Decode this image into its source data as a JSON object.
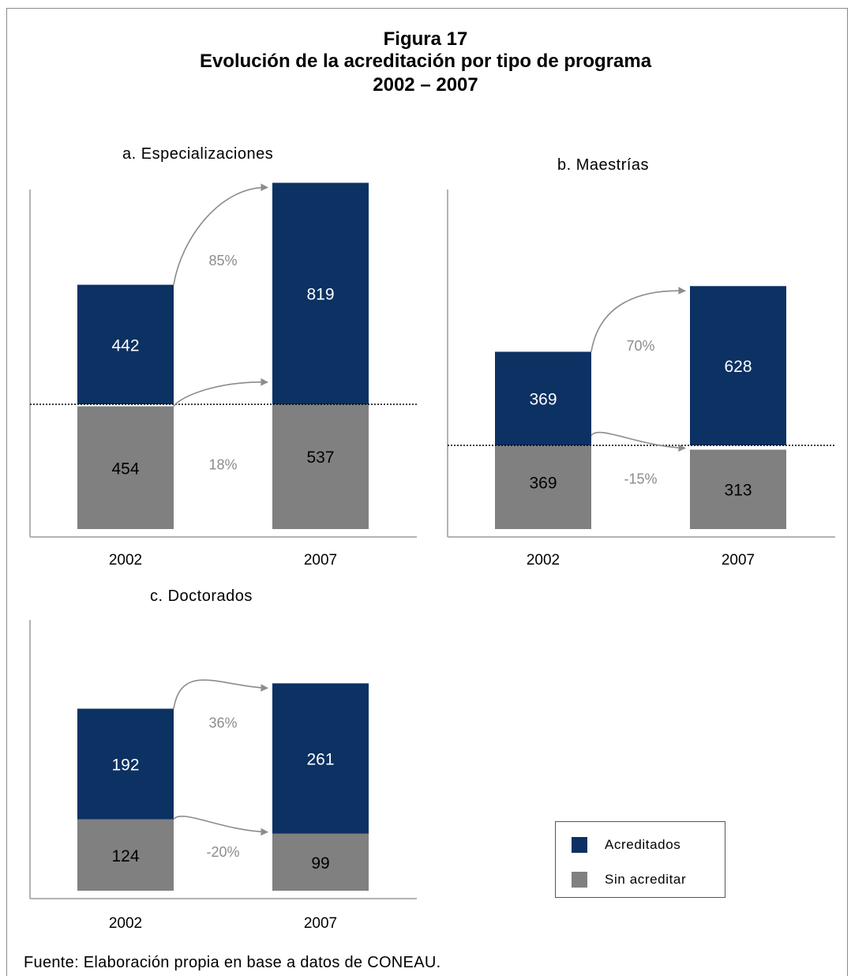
{
  "title": {
    "line1": "Figura 17",
    "line2": "Evolución de la acreditación por tipo de programa",
    "line3": "2002 – 2007"
  },
  "source": "Fuente: Elaboración propia en base a datos de CONEAU.",
  "colors": {
    "acreditados": "#0c3163",
    "sin_acreditar": "#808080",
    "arrow": "#8c8c8c",
    "pct_text": "#8c8c8c"
  },
  "legend": [
    {
      "label": "Acreditados",
      "color": "#0c3163"
    },
    {
      "label": "Sin acreditar",
      "color": "#808080"
    }
  ],
  "chart_data": [
    {
      "type": "bar",
      "stacked": true,
      "title": "a. Especializaciones",
      "categories": [
        "2002",
        "2007"
      ],
      "series": [
        {
          "name": "Acreditados",
          "values": [
            442,
            819
          ],
          "value_labels": [
            "442",
            "819"
          ]
        },
        {
          "name": "Sin acreditar",
          "values": [
            454,
            537
          ],
          "value_labels": [
            "454",
            "537"
          ]
        }
      ],
      "changes": {
        "Acreditados": "85%",
        "Sin acreditar": "18%"
      }
    },
    {
      "type": "bar",
      "stacked": true,
      "title": "b. Maestrías",
      "categories": [
        "2002",
        "2007"
      ],
      "series": [
        {
          "name": "Acreditados",
          "values": [
            369,
            628
          ],
          "value_labels": [
            "369",
            "628"
          ]
        },
        {
          "name": "Sin acreditar",
          "values": [
            369,
            313
          ],
          "value_labels": [
            "369",
            "313"
          ]
        }
      ],
      "changes": {
        "Acreditados": "70%",
        "Sin acreditar": "-15%"
      }
    },
    {
      "type": "bar",
      "stacked": true,
      "title": "c. Doctorados",
      "categories": [
        "2002",
        "2007"
      ],
      "series": [
        {
          "name": "Acreditados",
          "values": [
            192,
            261
          ],
          "value_labels": [
            "192",
            "261"
          ]
        },
        {
          "name": "Sin acreditar",
          "values": [
            124,
            99
          ],
          "value_labels": [
            "124",
            "99"
          ]
        }
      ],
      "changes": {
        "Acreditados": "36%",
        "Sin acreditar": "-20%"
      }
    }
  ]
}
